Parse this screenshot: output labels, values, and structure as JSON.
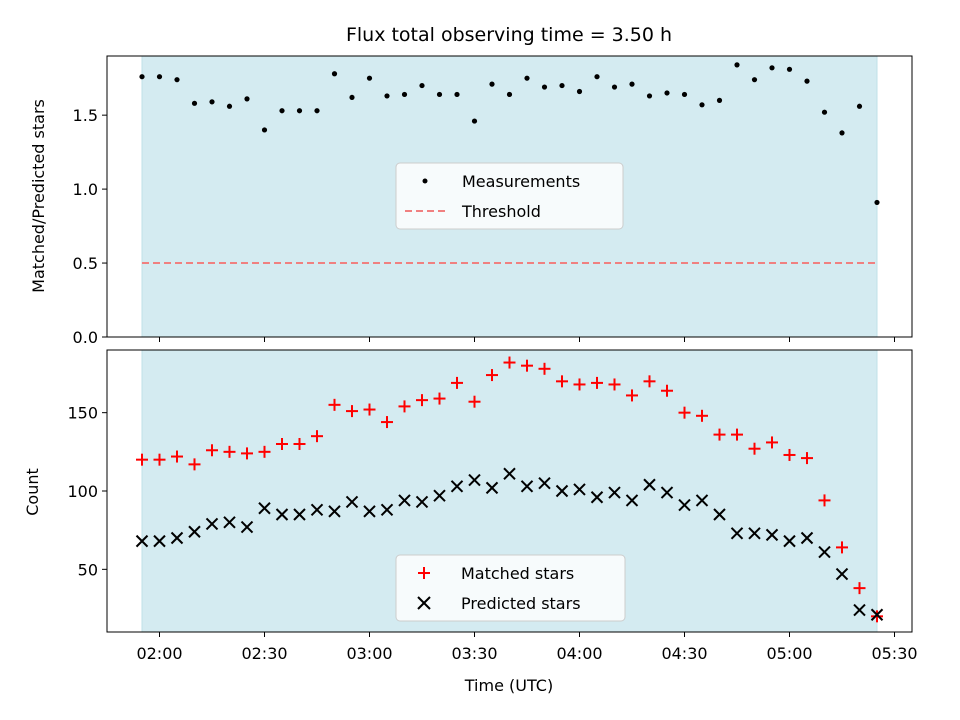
{
  "chart_data": [
    {
      "type": "scatter",
      "panel": "top",
      "title": "Flux total observing time = 3.50 h",
      "xlabel": "",
      "ylabel": "Matched/Predicted stars",
      "ylim": [
        0,
        1.9
      ],
      "yticks": [
        0.0,
        0.5,
        1.0,
        1.5
      ],
      "ytick_labels": [
        "0.0",
        "0.5",
        "1.0",
        "1.5"
      ],
      "x_unit": "minutes since 00:00 UTC",
      "observing_window": [
        115,
        325
      ],
      "shade_color": "#d4ebf1",
      "legend": {
        "placement": "center",
        "entries": [
          "Measurements",
          "Threshold"
        ]
      },
      "series": [
        {
          "name": "Measurements",
          "marker": "dot",
          "color": "#000000",
          "x": [
            115,
            120,
            125,
            130,
            135,
            140,
            145,
            150,
            155,
            160,
            165,
            170,
            175,
            180,
            185,
            190,
            195,
            200,
            205,
            210,
            215,
            220,
            225,
            230,
            235,
            240,
            245,
            250,
            255,
            260,
            265,
            270,
            275,
            280,
            285,
            290,
            295,
            300,
            305,
            310,
            315,
            320,
            325
          ],
          "y": [
            1.76,
            1.76,
            1.74,
            1.58,
            1.59,
            1.56,
            1.61,
            1.4,
            1.53,
            1.53,
            1.53,
            1.78,
            1.62,
            1.75,
            1.63,
            1.64,
            1.7,
            1.64,
            1.64,
            1.46,
            1.71,
            1.64,
            1.75,
            1.69,
            1.7,
            1.66,
            1.76,
            1.69,
            1.71,
            1.63,
            1.65,
            1.64,
            1.57,
            1.6,
            1.84,
            1.74,
            1.82,
            1.81,
            1.73,
            1.52,
            1.38,
            1.56,
            0.91
          ]
        },
        {
          "name": "Threshold",
          "type": "hline",
          "color": "#f08080",
          "value": 0.5
        }
      ]
    },
    {
      "type": "scatter",
      "panel": "bottom",
      "title": "",
      "xlabel": "Time (UTC)",
      "ylabel": "Count",
      "ylim": [
        10,
        190
      ],
      "yticks": [
        50,
        100,
        150
      ],
      "ytick_labels": [
        "50",
        "100",
        "150"
      ],
      "xlim": [
        105,
        335
      ],
      "xticks": [
        120,
        150,
        180,
        210,
        240,
        270,
        300,
        330
      ],
      "xtick_labels": [
        "02:00",
        "02:30",
        "03:00",
        "03:30",
        "04:00",
        "04:30",
        "05:00",
        "05:30"
      ],
      "x_unit": "minutes since 00:00 UTC",
      "observing_window": [
        115,
        325
      ],
      "shade_color": "#d4ebf1",
      "legend": {
        "placement": "lower center",
        "entries": [
          "Matched stars",
          "Predicted stars"
        ]
      },
      "x": [
        115,
        120,
        125,
        130,
        135,
        140,
        145,
        150,
        155,
        160,
        165,
        170,
        175,
        180,
        185,
        190,
        195,
        200,
        205,
        210,
        215,
        220,
        225,
        230,
        235,
        240,
        245,
        250,
        255,
        260,
        265,
        270,
        275,
        280,
        285,
        290,
        295,
        300,
        305,
        310,
        315,
        320,
        325
      ],
      "series": [
        {
          "name": "Matched stars",
          "marker": "plus",
          "color": "#ff0000",
          "values": [
            120,
            120,
            122,
            117,
            126,
            125,
            124,
            125,
            130,
            130,
            135,
            155,
            151,
            152,
            144,
            154,
            158,
            159,
            169,
            157,
            174,
            182,
            180,
            178,
            170,
            168,
            169,
            168,
            161,
            170,
            164,
            150,
            148,
            136,
            136,
            127,
            131,
            123,
            121,
            94,
            64,
            38,
            20
          ]
        },
        {
          "name": "Predicted stars",
          "marker": "x",
          "color": "#000000",
          "values": [
            68,
            68,
            70,
            74,
            79,
            80,
            77,
            89,
            85,
            85,
            88,
            87,
            93,
            87,
            88,
            94,
            93,
            97,
            103,
            107,
            102,
            111,
            103,
            105,
            100,
            101,
            96,
            99,
            94,
            104,
            99,
            91,
            94,
            85,
            73,
            73,
            72,
            68,
            70,
            61,
            47,
            24,
            21
          ]
        }
      ]
    }
  ]
}
